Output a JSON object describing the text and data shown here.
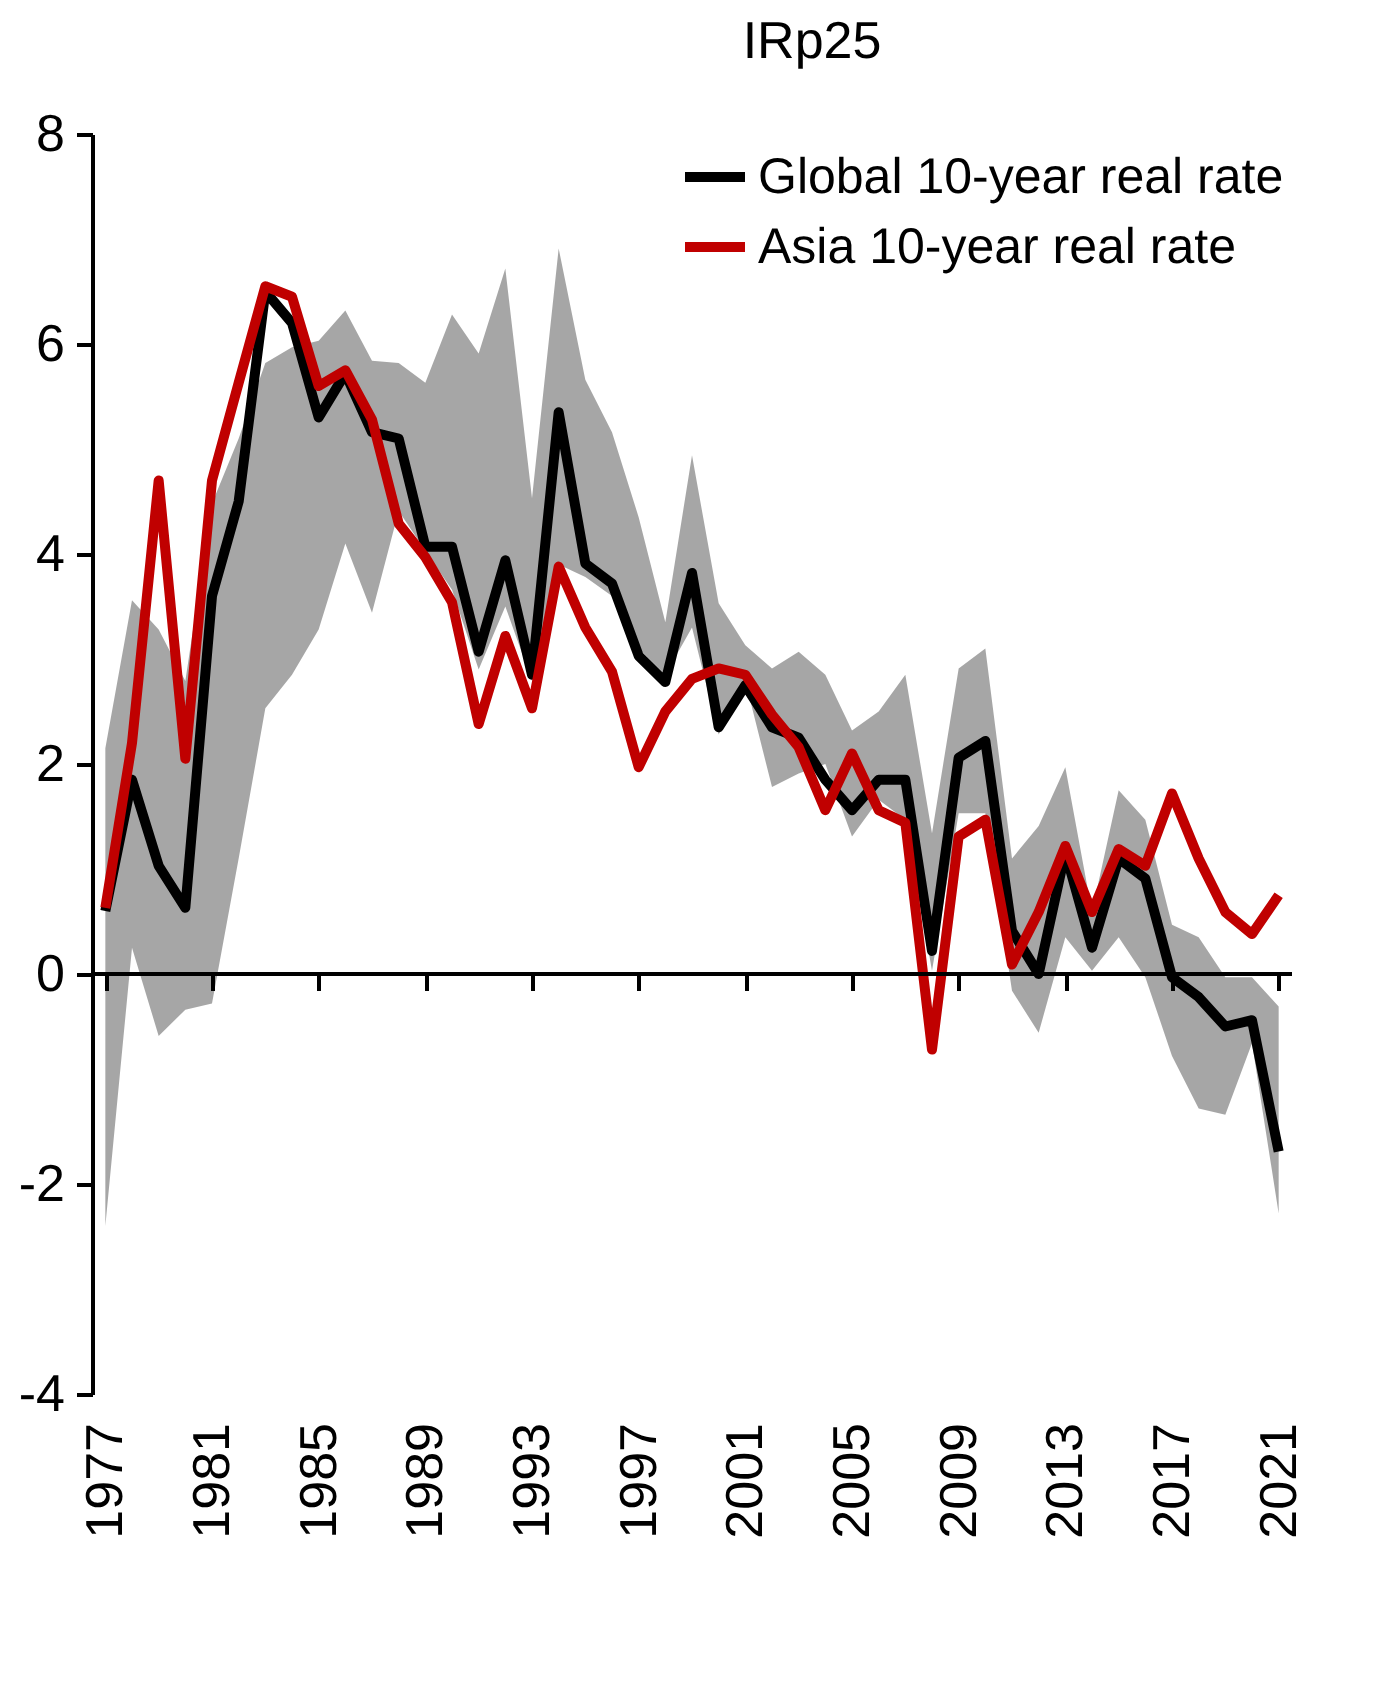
{
  "chart_data": {
    "type": "line",
    "title": "IRp25",
    "x": [
      1977,
      1978,
      1979,
      1980,
      1981,
      1982,
      1983,
      1984,
      1985,
      1986,
      1987,
      1988,
      1989,
      1990,
      1991,
      1992,
      1993,
      1994,
      1995,
      1996,
      1997,
      1998,
      1999,
      2000,
      2001,
      2002,
      2003,
      2004,
      2005,
      2006,
      2007,
      2008,
      2009,
      2010,
      2011,
      2012,
      2013,
      2014,
      2015,
      2016,
      2017,
      2018,
      2019,
      2020,
      2021
    ],
    "series": [
      {
        "name": "Global 10-year real rate",
        "color": "#000000",
        "values": [
          0.6,
          1.85,
          1.03,
          0.63,
          3.6,
          4.5,
          6.5,
          6.2,
          5.3,
          5.72,
          5.16,
          5.1,
          4.07,
          4.07,
          3.07,
          3.94,
          2.85,
          5.35,
          3.91,
          3.72,
          3.03,
          2.78,
          3.82,
          2.35,
          2.75,
          2.35,
          2.25,
          1.85,
          1.56,
          1.85,
          1.85,
          0.22,
          2.06,
          2.22,
          0.41,
          0.0,
          1.16,
          0.25,
          1.1,
          0.91,
          -0.03,
          -0.22,
          -0.5,
          -0.44,
          -1.69
        ],
        "lower": [
          -2.4,
          0.25,
          -0.59,
          -0.34,
          -0.28,
          1.1,
          2.53,
          2.85,
          3.28,
          4.1,
          3.44,
          4.41,
          4.03,
          3.66,
          2.9,
          3.5,
          2.79,
          3.9,
          3.78,
          3.6,
          3.1,
          2.85,
          3.3,
          2.28,
          2.79,
          1.78,
          1.91,
          2.0,
          1.31,
          1.66,
          1.47,
          0.03,
          1.53,
          1.53,
          -0.16,
          -0.56,
          0.35,
          0.03,
          0.35,
          -0.03,
          -0.78,
          -1.28,
          -1.34,
          -0.66,
          -2.28
        ],
        "upper": [
          2.15,
          3.56,
          3.28,
          2.79,
          4.48,
          5.1,
          5.82,
          5.97,
          6.03,
          6.32,
          5.84,
          5.82,
          5.63,
          6.28,
          5.91,
          6.72,
          4.53,
          6.91,
          5.66,
          5.16,
          4.35,
          3.35,
          4.94,
          3.53,
          3.13,
          2.91,
          3.07,
          2.85,
          2.32,
          2.5,
          2.85,
          1.34,
          2.91,
          3.1,
          1.1,
          1.41,
          1.97,
          0.59,
          1.75,
          1.47,
          0.47,
          0.35,
          -0.03,
          -0.03,
          -0.31
        ]
      },
      {
        "name": "Asia 10-year real rate",
        "color": "#c00000",
        "values": [
          0.63,
          2.2,
          4.7,
          2.05,
          4.7,
          5.63,
          6.55,
          6.45,
          5.6,
          5.75,
          5.28,
          4.29,
          3.97,
          3.54,
          2.38,
          3.22,
          2.53,
          3.88,
          3.3,
          2.88,
          1.97,
          2.5,
          2.81,
          2.91,
          2.85,
          2.47,
          2.16,
          1.56,
          2.1,
          1.56,
          1.44,
          -0.72,
          1.31,
          1.47,
          0.09,
          0.59,
          1.22,
          0.59,
          1.19,
          1.03,
          1.72,
          1.1,
          0.59,
          0.38,
          0.75
        ]
      }
    ],
    "xlim": [
      1976.5,
      2021.5
    ],
    "xticks": [
      1977,
      1981,
      1985,
      1989,
      1993,
      1997,
      2001,
      2005,
      2009,
      2013,
      2017,
      2021
    ],
    "ylim": [
      -4,
      8
    ],
    "yticks": [
      -4,
      -2,
      0,
      2,
      4,
      6,
      8
    ],
    "ref_lines": [
      {
        "axis": "y",
        "value": 0,
        "color": "#000000"
      }
    ],
    "legend": "top right",
    "grid": false
  }
}
